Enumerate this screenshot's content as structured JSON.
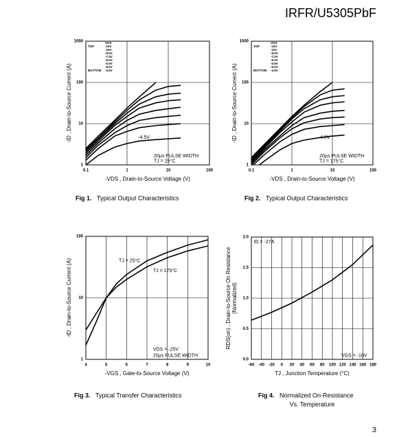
{
  "header": "IRFR/U5305PbF",
  "page_number": "3",
  "chart_data": [
    {
      "type": "line",
      "figure_label": "Fig 1.",
      "title": "Typical Output Characteristics",
      "xlabel": "-VDS , Drain-to-Source Voltage (V)",
      "ylabel": "-ID , Drain-to-Source Current (A)",
      "xlog": true,
      "ylog": true,
      "grid": true,
      "xlim": [
        0.1,
        100
      ],
      "ylim": [
        1,
        1000
      ],
      "xticks": [
        0.1,
        1,
        10,
        100
      ],
      "yticks": [
        1,
        10,
        100,
        1000
      ],
      "legend_title": "VGS",
      "legend_top": "TOP",
      "legend_bottom": "BOTTOM",
      "annotations": [
        "-4.5V",
        "20µs PULSE WIDTH",
        "TJ = 25°C"
      ],
      "x": [
        0.1,
        0.2,
        0.5,
        1,
        2,
        5,
        10,
        20
      ],
      "series": [
        {
          "name": "-15V",
          "color": "#000",
          "values": [
            2.5,
            5,
            12,
            24,
            45,
            100,
            null,
            null
          ]
        },
        {
          "name": "-10V",
          "color": "#000",
          "values": [
            2.3,
            4.5,
            11,
            21,
            38,
            65,
            80,
            85
          ]
        },
        {
          "name": "-8.0V",
          "color": "#000",
          "values": [
            2.1,
            4.2,
            10,
            18,
            30,
            45,
            52,
            55
          ]
        },
        {
          "name": "-7.0V",
          "color": "#000",
          "values": [
            1.9,
            3.8,
            9,
            15,
            24,
            32,
            36,
            38
          ]
        },
        {
          "name": "-6.0V",
          "color": "#000",
          "values": [
            1.7,
            3.4,
            7.5,
            12,
            17,
            21,
            23,
            25
          ]
        },
        {
          "name": "-5.5V",
          "color": "#000",
          "values": [
            1.5,
            3,
            6,
            9,
            12,
            14,
            15,
            16
          ]
        },
        {
          "name": "-5.0V",
          "color": "#000",
          "values": [
            1.3,
            2.5,
            5,
            6.5,
            8,
            9,
            9.5,
            10
          ]
        },
        {
          "name": "-4.5V",
          "color": "#000",
          "values": [
            1,
            1.7,
            2.7,
            3.3,
            3.8,
            4.1,
            4.3,
            4.5
          ]
        }
      ]
    },
    {
      "type": "line",
      "figure_label": "Fig 2.",
      "title": "Typical Output Characteristics",
      "xlabel": "-VDS , Drain-to-Source Voltage (V)",
      "ylabel": "-ID , Drain-to-Source Current (A)",
      "xlog": true,
      "ylog": true,
      "grid": true,
      "xlim": [
        0.1,
        100
      ],
      "ylim": [
        1,
        1000
      ],
      "xticks": [
        0.1,
        1,
        10,
        100
      ],
      "yticks": [
        1,
        10,
        100,
        1000
      ],
      "legend_title": "VGS",
      "legend_top": "TOP",
      "legend_bottom": "BOTTOM",
      "annotations": [
        "-4.5V",
        "20µs PULSE WIDTH",
        "TJ = 175°C"
      ],
      "x": [
        0.1,
        0.2,
        0.5,
        1,
        2,
        5,
        10,
        20
      ],
      "series": [
        {
          "name": "-15V",
          "color": "#000",
          "values": [
            1.5,
            3,
            7.5,
            15,
            28,
            60,
            100,
            null
          ]
        },
        {
          "name": "-10V",
          "color": "#000",
          "values": [
            1.4,
            2.8,
            7,
            14,
            26,
            50,
            65,
            70
          ]
        },
        {
          "name": "-8.0V",
          "color": "#000",
          "values": [
            1.3,
            2.6,
            6.5,
            13,
            23,
            38,
            45,
            48
          ]
        },
        {
          "name": "-7.0V",
          "color": "#000",
          "values": [
            1.2,
            2.4,
            6,
            11,
            19,
            28,
            32,
            34
          ]
        },
        {
          "name": "-6.0V",
          "color": "#000",
          "values": [
            1.1,
            2.2,
            5,
            9,
            14,
            18,
            20,
            21
          ]
        },
        {
          "name": "-5.5V",
          "color": "#000",
          "values": [
            1,
            2,
            4.5,
            7.5,
            10.5,
            13,
            14,
            14.5
          ]
        },
        {
          "name": "-5.0V",
          "color": "#000",
          "values": [
            0.9,
            1.7,
            3.6,
            5.5,
            7.3,
            8.5,
            9,
            9.5
          ]
        },
        {
          "name": "-4.5V",
          "color": "#000",
          "values": [
            0.7,
            1.2,
            2.3,
            3.3,
            4,
            4.6,
            5,
            5.3
          ]
        }
      ]
    },
    {
      "type": "line",
      "figure_label": "Fig 3.",
      "title": "Typical Transfer Characteristics",
      "xlabel": "-VGS , Gate-to-Source Voltage (V)",
      "ylabel": "-ID , Drain-to-Source Current (A)",
      "xlog": false,
      "ylog": true,
      "grid": true,
      "xlim": [
        4,
        10
      ],
      "ylim": [
        1,
        100
      ],
      "xticks": [
        4,
        5,
        6,
        7,
        8,
        9,
        10
      ],
      "yticks": [
        1,
        10,
        100
      ],
      "annotations": [
        "VDS = -25V",
        "20µs PULSE WIDTH"
      ],
      "x": [
        4,
        4.5,
        5,
        5.5,
        6,
        7,
        8,
        9,
        10
      ],
      "series": [
        {
          "name": "TJ = 25°C",
          "color": "#000",
          "values": [
            1.7,
            4,
            10,
            17,
            24,
            40,
            55,
            72,
            88
          ]
        },
        {
          "name": "TJ = 175°C",
          "color": "#000",
          "values": [
            3,
            5.5,
            10,
            15,
            20,
            32,
            45,
            58,
            70
          ]
        }
      ]
    },
    {
      "type": "line",
      "figure_label": "Fig 4.",
      "title": [
        "Normalized On-Resistance",
        "Vs. Temperature"
      ],
      "xlabel": "TJ , Junction Temperature (°C)",
      "ylabel": "RDS(on) , Drain-to-Source On Resistance",
      "ylabel2": "(Normalized)",
      "xlog": false,
      "ylog": false,
      "grid": true,
      "xlim": [
        -60,
        180
      ],
      "ylim": [
        0,
        2
      ],
      "xticks": [
        -60,
        -40,
        -20,
        0,
        20,
        40,
        60,
        80,
        100,
        120,
        140,
        160,
        180
      ],
      "yticks": [
        {
          "value": 0,
          "label": "0.0"
        },
        0.5,
        {
          "value": 1,
          "label": "1.0"
        },
        1.5,
        {
          "value": 2,
          "label": "2.0"
        }
      ],
      "annotations": [
        "ID = -27A",
        "VGS = -10V"
      ],
      "x": [
        -60,
        -20,
        20,
        60,
        100,
        140,
        180
      ],
      "series": [
        {
          "name": "RDS(on)",
          "color": "#000",
          "values": [
            0.64,
            0.77,
            0.92,
            1.1,
            1.3,
            1.55,
            1.87
          ]
        }
      ]
    }
  ]
}
